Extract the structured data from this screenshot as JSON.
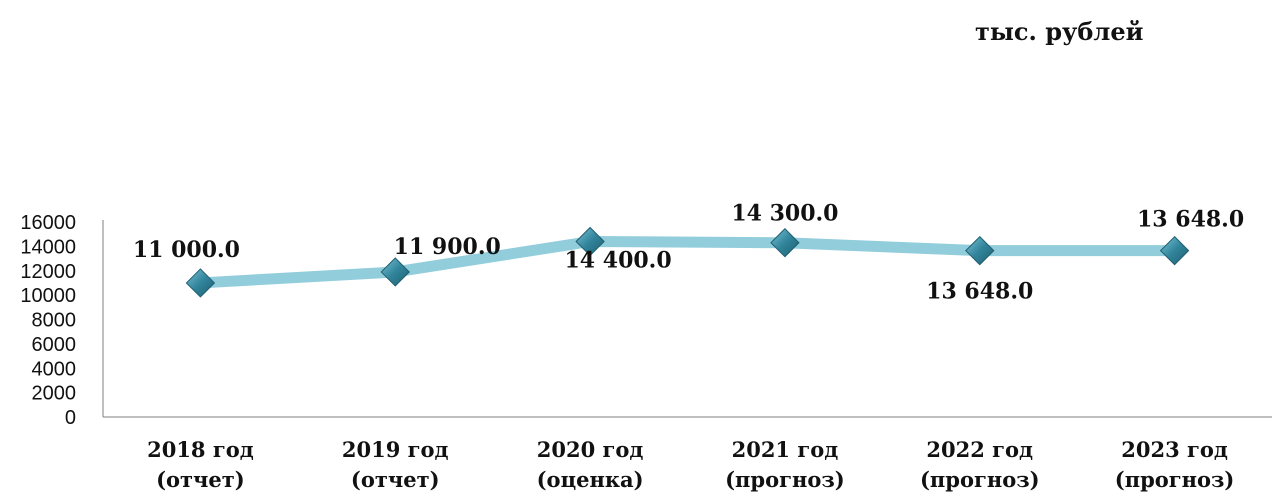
{
  "chart_data": {
    "type": "line",
    "unit_label": "тыс. рублей",
    "categories": [
      [
        "2018 год",
        "(отчет)"
      ],
      [
        "2019 год",
        "(отчет)"
      ],
      [
        "2020 год",
        "(оценка)"
      ],
      [
        "2021 год",
        "(прогноз)"
      ],
      [
        "2022 год",
        "(прогноз)"
      ],
      [
        "2023 год",
        "(прогноз)"
      ]
    ],
    "series": [
      {
        "values": [
          11000,
          11900,
          14400,
          14300,
          13648,
          13648
        ]
      }
    ],
    "data_labels": [
      "11 000.0",
      "11 900.0",
      "14 400.0",
      "14 300.0",
      "13 648.0",
      "13 648.0"
    ],
    "ylim": [
      0,
      16000
    ],
    "yticks": [
      "0",
      "2000",
      "4000",
      "6000",
      "8000",
      "10000",
      "12000",
      "14000",
      "16000"
    ],
    "grid": false,
    "legend": "none",
    "colors": {
      "line": "#92cddc",
      "marker": "#31849b",
      "marker_light": "#5fb1c8",
      "axis": "#7f7f7f"
    }
  }
}
